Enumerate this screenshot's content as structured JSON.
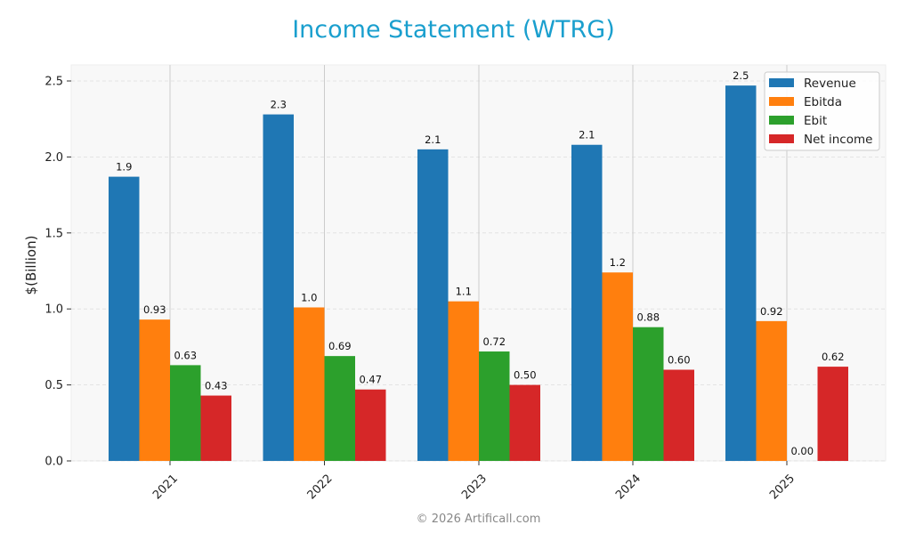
{
  "title": "Income Statement (WTRG)",
  "footer": "© 2026 Artificall.com",
  "colors": {
    "title": "#1a9fce",
    "revenue": "#1f77b4",
    "ebitda": "#ff7f0e",
    "ebit": "#2ca02c",
    "net_income": "#d62728",
    "plot_bg": "#f8f8f8"
  },
  "chart_data": {
    "type": "bar",
    "title": "Income Statement (WTRG)",
    "xlabel": "",
    "ylabel": "$(Billion)",
    "ylim": [
      0,
      2.6
    ],
    "yticks": [
      0.0,
      0.5,
      1.0,
      1.5,
      2.0,
      2.5
    ],
    "ytick_labels": [
      "0.0",
      "0.5",
      "1.0",
      "1.5",
      "2.0",
      "2.5"
    ],
    "grid": true,
    "legend_position": "upper right",
    "categories": [
      "2021",
      "2022",
      "2023",
      "2024",
      "2025"
    ],
    "series": [
      {
        "name": "Revenue",
        "color": "#1f77b4",
        "values": [
          1.87,
          2.28,
          2.05,
          2.08,
          2.47
        ],
        "labels": [
          "1.9",
          "2.3",
          "2.1",
          "2.1",
          "2.5"
        ]
      },
      {
        "name": "Ebitda",
        "color": "#ff7f0e",
        "values": [
          0.93,
          1.01,
          1.05,
          1.24,
          0.92
        ],
        "labels": [
          "0.93",
          "1.0",
          "1.1",
          "1.2",
          "0.92"
        ]
      },
      {
        "name": "Ebit",
        "color": "#2ca02c",
        "values": [
          0.63,
          0.69,
          0.72,
          0.88,
          0.0
        ],
        "labels": [
          "0.63",
          "0.69",
          "0.72",
          "0.88",
          "0.00"
        ]
      },
      {
        "name": "Net income",
        "color": "#d62728",
        "values": [
          0.43,
          0.47,
          0.5,
          0.6,
          0.62
        ],
        "labels": [
          "0.43",
          "0.47",
          "0.50",
          "0.60",
          "0.62"
        ]
      }
    ]
  }
}
